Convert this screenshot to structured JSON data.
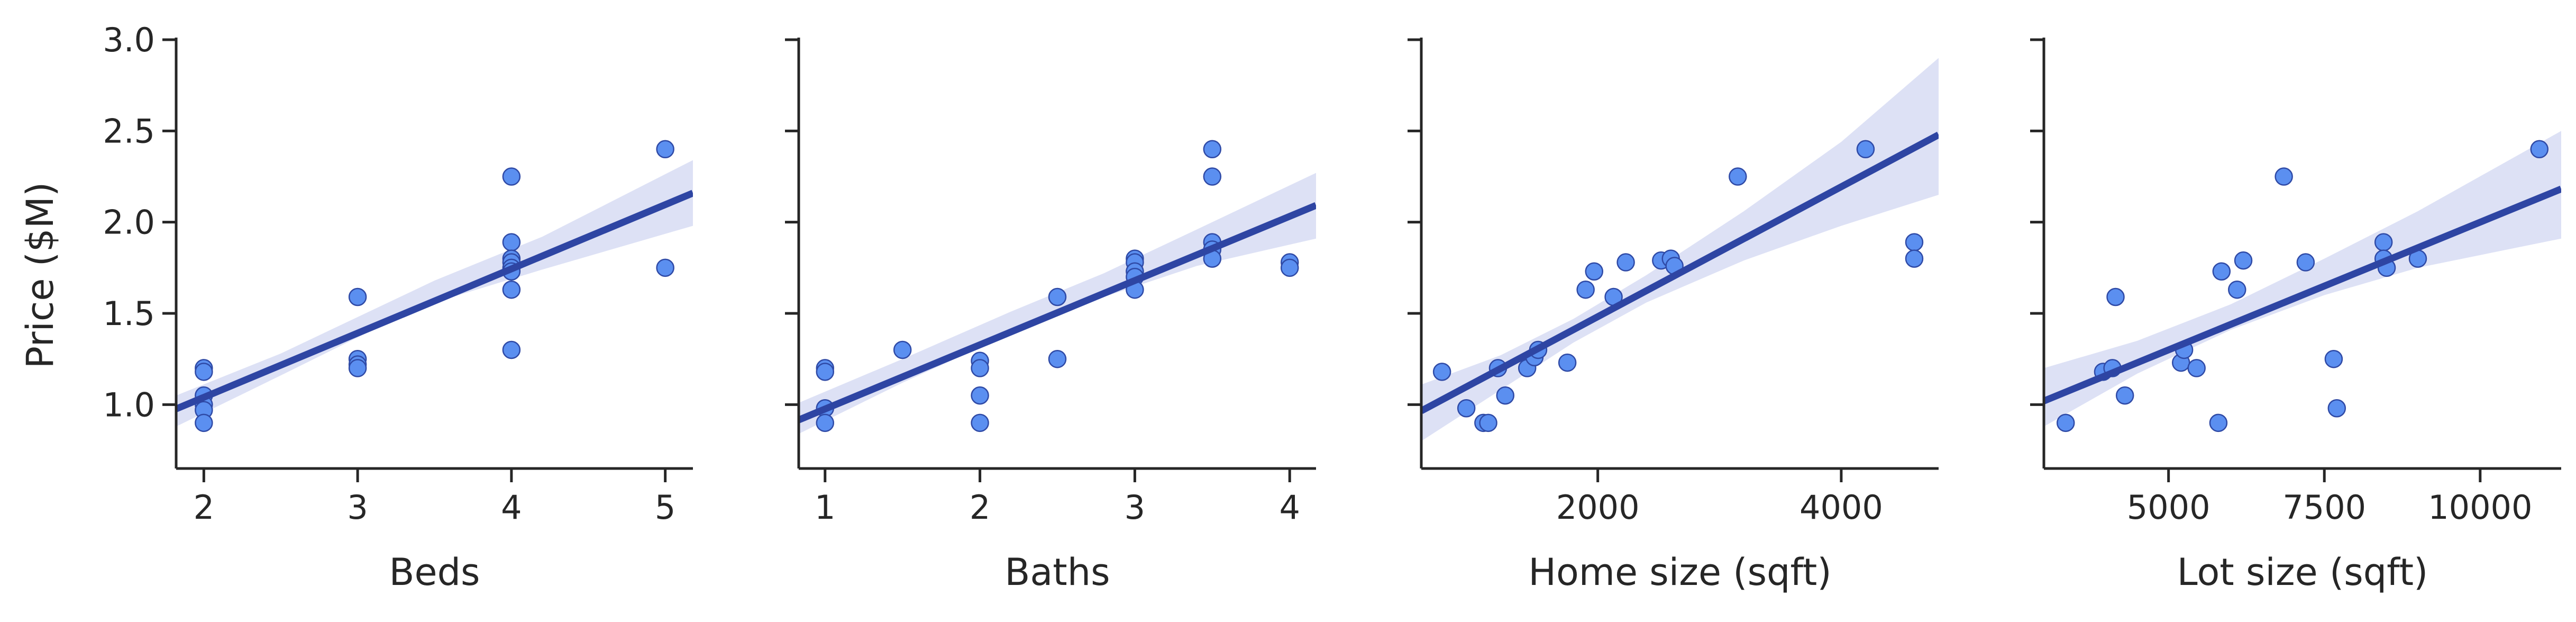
{
  "figure": {
    "colors": {
      "point_fill": "#5b8ff0",
      "point_edge": "#2f4aa6",
      "line": "#2e45a3",
      "ci_band": "#dde1f5",
      "axis": "#262626",
      "background": "#ffffff"
    },
    "ylabel": "Price ($M)"
  },
  "chart_data": [
    {
      "type": "scatter",
      "xlabel": "Beds",
      "ylabel": "Price ($M)",
      "xlim": [
        1.82,
        5.18
      ],
      "ylim": [
        0.65,
        3.0
      ],
      "xticks": [
        2,
        3,
        4,
        5
      ],
      "xtick_labels": [
        "2",
        "3",
        "4",
        "5"
      ],
      "yticks": [
        1.0,
        1.5,
        2.0,
        2.5,
        3.0
      ],
      "ytick_labels": [
        "1.0",
        "1.5",
        "2.0",
        "2.5",
        "3.0"
      ],
      "show_yticklabels": true,
      "x": [
        2,
        2,
        2,
        2,
        2,
        2,
        3,
        3,
        3,
        3,
        4,
        4,
        4,
        4,
        4,
        4,
        4,
        4,
        5,
        5
      ],
      "y": [
        1.2,
        1.18,
        1.05,
        1.0,
        0.97,
        0.9,
        1.59,
        1.25,
        1.22,
        1.2,
        2.25,
        1.89,
        1.8,
        1.78,
        1.75,
        1.73,
        1.63,
        1.3,
        2.4,
        1.75
      ],
      "regression": {
        "slope": 0.352,
        "intercept": 0.336
      },
      "ci": {
        "x": [
          1.82,
          2.5,
          3.1,
          3.5,
          4.2,
          5.18
        ],
        "lower": [
          0.88,
          1.16,
          1.41,
          1.56,
          1.74,
          1.98
        ],
        "upper": [
          1.05,
          1.28,
          1.52,
          1.68,
          1.92,
          2.34
        ]
      }
    },
    {
      "type": "scatter",
      "xlabel": "Baths",
      "ylabel": "",
      "xlim": [
        0.83,
        4.17
      ],
      "ylim": [
        0.65,
        3.0
      ],
      "xticks": [
        1,
        2,
        3,
        4
      ],
      "xtick_labels": [
        "1",
        "2",
        "3",
        "4"
      ],
      "yticks": [
        1.0,
        1.5,
        2.0,
        2.5,
        3.0
      ],
      "ytick_labels": [
        "1.0",
        "1.5",
        "2.0",
        "2.5",
        "3.0"
      ],
      "show_yticklabels": false,
      "x": [
        1,
        1,
        1,
        1,
        1.5,
        2,
        2,
        2,
        2,
        2.5,
        2.5,
        3,
        3,
        3,
        3,
        3,
        3.5,
        3.5,
        3.5,
        3.5,
        3.5,
        4,
        4
      ],
      "y": [
        1.2,
        1.18,
        0.98,
        0.9,
        1.3,
        1.24,
        1.2,
        1.05,
        0.9,
        1.59,
        1.25,
        1.8,
        1.78,
        1.73,
        1.7,
        1.63,
        2.4,
        2.25,
        1.89,
        1.85,
        1.8,
        1.78,
        1.75
      ],
      "regression": {
        "slope": 0.352,
        "intercept": 0.624
      },
      "ci": {
        "x": [
          0.83,
          1.5,
          2.2,
          2.8,
          3.4,
          4.17
        ],
        "lower": [
          0.84,
          1.12,
          1.39,
          1.59,
          1.76,
          1.91
        ],
        "upper": [
          1.01,
          1.25,
          1.51,
          1.72,
          1.96,
          2.27
        ]
      }
    },
    {
      "type": "scatter",
      "xlabel": "Home size (sqft)",
      "ylabel": "",
      "xlim": [
        550,
        4800
      ],
      "ylim": [
        0.65,
        3.0
      ],
      "xticks": [
        2000,
        4000
      ],
      "xtick_labels": [
        "2000",
        "4000"
      ],
      "yticks": [
        1.0,
        1.5,
        2.0,
        2.5,
        3.0
      ],
      "ytick_labels": [
        "1.0",
        "1.5",
        "2.0",
        "2.5",
        "3.0"
      ],
      "show_yticklabels": false,
      "x": [
        720,
        920,
        1060,
        1100,
        1180,
        1240,
        1420,
        1480,
        1510,
        1750,
        1900,
        1970,
        2130,
        2230,
        2520,
        2600,
        2630,
        3150,
        4200,
        4600,
        4600
      ],
      "y": [
        1.18,
        0.98,
        0.9,
        0.9,
        1.2,
        1.05,
        1.2,
        1.26,
        1.3,
        1.23,
        1.63,
        1.73,
        1.59,
        1.78,
        1.79,
        1.8,
        1.76,
        2.25,
        2.4,
        1.89,
        1.8
      ],
      "regression": {
        "slope": 0.000356,
        "intercept": 0.77
      },
      "ci": {
        "x": [
          550,
          1200,
          1800,
          2400,
          3200,
          4000,
          4800
        ],
        "lower": [
          0.8,
          1.08,
          1.34,
          1.56,
          1.79,
          1.98,
          2.15
        ],
        "upper": [
          1.11,
          1.27,
          1.47,
          1.71,
          2.06,
          2.44,
          2.9
        ]
      }
    },
    {
      "type": "scatter",
      "xlabel": "Lot size (sqft)",
      "ylabel": "",
      "xlim": [
        3000,
        11300
      ],
      "ylim": [
        0.65,
        3.0
      ],
      "xticks": [
        5000,
        7500,
        10000
      ],
      "xtick_labels": [
        "5000",
        "7500",
        "10000"
      ],
      "yticks": [
        1.0,
        1.5,
        2.0,
        2.5,
        3.0
      ],
      "ytick_labels": [
        "1.0",
        "1.5",
        "2.0",
        "2.5",
        "3.0"
      ],
      "show_yticklabels": false,
      "x": [
        3350,
        3950,
        4100,
        4150,
        4300,
        5200,
        5250,
        5450,
        5800,
        5850,
        6100,
        6200,
        6850,
        7200,
        7650,
        7700,
        8450,
        8450,
        8500,
        9000,
        10950
      ],
      "y": [
        0.9,
        1.18,
        1.2,
        1.59,
        1.05,
        1.23,
        1.3,
        1.2,
        0.9,
        1.73,
        1.63,
        1.79,
        2.25,
        1.78,
        1.25,
        0.98,
        1.89,
        1.8,
        1.75,
        1.8,
        2.4
      ],
      "regression": {
        "slope": 0.00014,
        "intercept": 0.6
      },
      "ci": {
        "x": [
          3000,
          4500,
          6000,
          7500,
          9000,
          11300
        ],
        "lower": [
          0.88,
          1.17,
          1.41,
          1.6,
          1.75,
          1.91
        ],
        "upper": [
          1.2,
          1.35,
          1.55,
          1.8,
          2.06,
          2.5
        ]
      }
    }
  ]
}
